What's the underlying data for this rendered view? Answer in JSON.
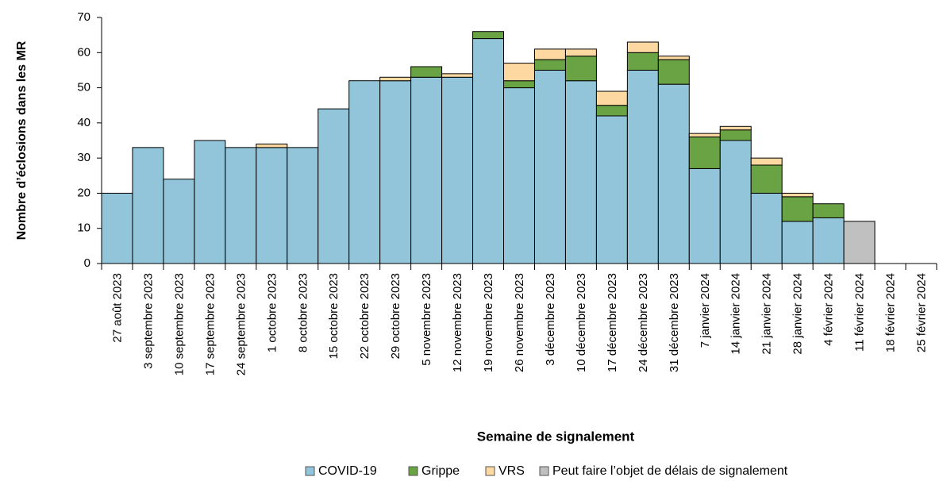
{
  "chart_data": {
    "type": "stacked_bar",
    "y_label": "Nombre d’éclosions dans les MR",
    "x_label": "Semaine de signalement",
    "categories": [
      "27 août 2023",
      "3 septembre 2023",
      "10 septembre 2023",
      "17 septembre 2023",
      "24 septembre 2023",
      "1 octobre 2023",
      "8 octobre 2023",
      "15 octobre 2023",
      "22 octobre 2023",
      "29 octobre 2023",
      "5 novembre 2023",
      "12 novembre 2023",
      "19 novembre 2023",
      "26 novembre 2023",
      "3 décembre 2023",
      "10 décembre 2023",
      "17 décembre 2023",
      "24 décembre 2023",
      "31 décembre 2023",
      "7 janvier 2024",
      "14 janvier 2024",
      "21 janvier 2024",
      "28 janvier 2024",
      "4 février 2024",
      "11 février 2024",
      "18 février 2024",
      "25 février 2024"
    ],
    "series": [
      {
        "name": "COVID-19",
        "color": "#92c5d9",
        "values": [
          20,
          33,
          24,
          35,
          33,
          33,
          33,
          44,
          52,
          52,
          53,
          53,
          64,
          50,
          55,
          52,
          42,
          55,
          51,
          27,
          35,
          20,
          12,
          13,
          0,
          0,
          0
        ]
      },
      {
        "name": "Grippe",
        "color": "#6aa343",
        "values": [
          0,
          0,
          0,
          0,
          0,
          0,
          0,
          0,
          0,
          0,
          3,
          0,
          2,
          2,
          3,
          7,
          3,
          5,
          7,
          9,
          3,
          8,
          7,
          4,
          0,
          0,
          0
        ]
      },
      {
        "name": "VRS",
        "color": "#fdd8a0",
        "values": [
          0,
          0,
          0,
          0,
          0,
          1,
          0,
          0,
          0,
          1,
          0,
          1,
          0,
          5,
          3,
          2,
          4,
          3,
          1,
          1,
          1,
          2,
          1,
          0,
          0,
          0,
          0
        ]
      },
      {
        "name": "Peut faire l’objet de délais de signalement",
        "color": "#c0c0c0",
        "values": [
          0,
          0,
          0,
          0,
          0,
          0,
          0,
          0,
          0,
          0,
          0,
          0,
          0,
          0,
          0,
          0,
          0,
          0,
          0,
          0,
          0,
          0,
          0,
          0,
          12,
          0,
          0
        ]
      }
    ],
    "ylim": [
      0,
      70
    ],
    "yticks": [
      0,
      10,
      20,
      30,
      40,
      50,
      60,
      70
    ],
    "grid": false
  }
}
